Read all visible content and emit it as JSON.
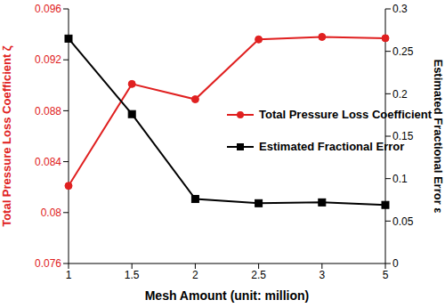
{
  "chart_data": {
    "type": "line",
    "x_label": "Mesh Amount (unit: million)",
    "y_label": "Total Pressure Loss Coefficient ζ",
    "y2_label": "Estimated Fractional Error ε",
    "categories": [
      "1",
      "1.5",
      "2",
      "2.5",
      "3",
      "5"
    ],
    "series": [
      {
        "name": "Total Pressure Loss Coefficient",
        "color": "#e02020",
        "marker": "circle",
        "axis": "y",
        "values": [
          0.0821,
          0.0901,
          0.0889,
          0.0936,
          0.0938,
          0.0937
        ]
      },
      {
        "name": "Estimated Fractional Error",
        "color": "#000000",
        "marker": "square",
        "axis": "y2",
        "values": [
          0.265,
          0.176,
          0.076,
          0.071,
          0.072,
          0.069
        ]
      }
    ],
    "ylim": [
      0.076,
      0.096
    ],
    "yticks": [
      0.076,
      0.08,
      0.084,
      0.088,
      0.092,
      0.096
    ],
    "y2lim": [
      0,
      0.3
    ],
    "y2ticks": [
      0,
      0.05,
      0.1,
      0.15,
      0.2,
      0.25,
      0.3
    ],
    "grid": false,
    "legend": "right"
  }
}
